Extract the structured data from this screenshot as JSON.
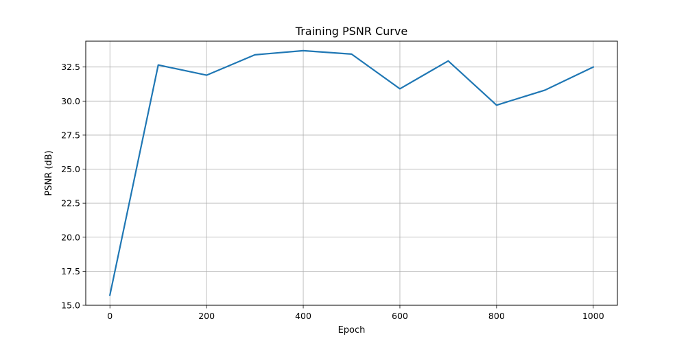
{
  "chart_data": {
    "type": "line",
    "title": "Training PSNR Curve",
    "xlabel": "Epoch",
    "ylabel": "PSNR (dB)",
    "xlim": [
      -50,
      1050
    ],
    "ylim": [
      15.0,
      34.4
    ],
    "x_ticks": [
      0,
      200,
      400,
      600,
      800,
      1000
    ],
    "x_tick_labels": [
      "0",
      "200",
      "400",
      "600",
      "800",
      "1000"
    ],
    "y_ticks": [
      15.0,
      17.5,
      20.0,
      22.5,
      25.0,
      27.5,
      30.0,
      32.5
    ],
    "y_tick_labels": [
      "15.0",
      "17.5",
      "20.0",
      "22.5",
      "25.0",
      "27.5",
      "30.0",
      "32.5"
    ],
    "grid": true,
    "series": [
      {
        "color": "#1f77b4",
        "x": [
          0,
          100,
          200,
          300,
          400,
          500,
          600,
          700,
          800,
          900,
          1000
        ],
        "y": [
          15.75,
          32.65,
          31.9,
          33.4,
          33.7,
          33.45,
          30.9,
          32.95,
          29.7,
          30.8,
          32.5
        ]
      }
    ]
  }
}
